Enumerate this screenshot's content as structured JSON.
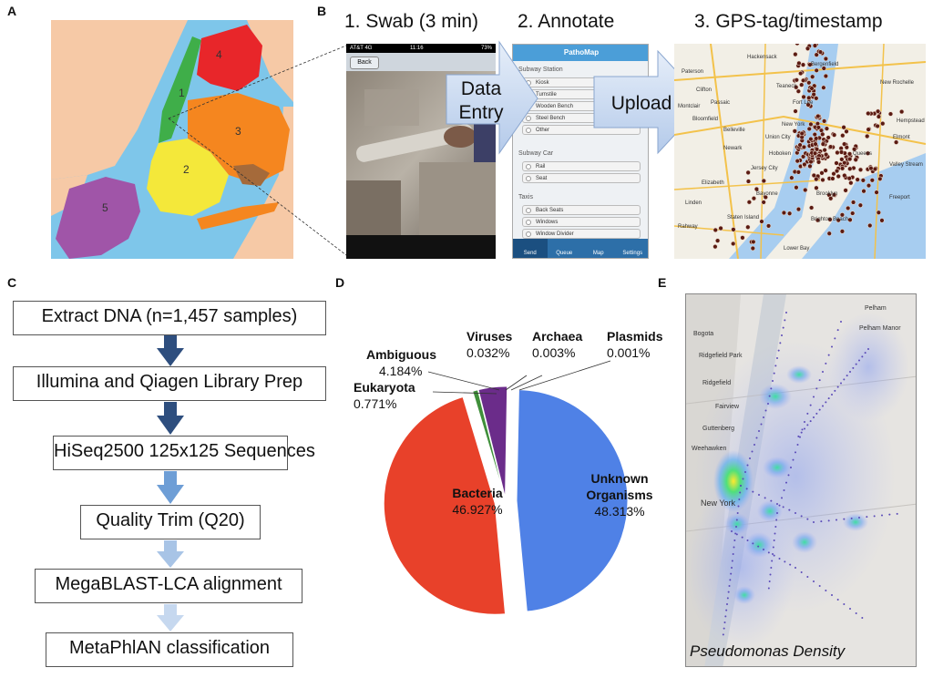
{
  "panels": {
    "a": "A",
    "b": "B",
    "c": "C",
    "d": "D",
    "e": "E"
  },
  "panel_a": {
    "boroughs": [
      "1",
      "2",
      "3",
      "4",
      "5"
    ]
  },
  "panel_b": {
    "steps": [
      "1. Swab (3 min)",
      "2.  Annotate",
      "3. GPS-tag/timestamp"
    ],
    "arrow_data_entry": [
      "Data",
      "Entry"
    ],
    "arrow_upload": "Upload",
    "phone": {
      "status_carrier": "AT&T 4G",
      "status_time": "11:16",
      "status_battery": "73%",
      "back_button": "Back"
    },
    "form": {
      "app_title": "PathoMap",
      "sections": [
        {
          "heading": "Subway Station",
          "options": [
            "Kiosk",
            "Turnstile",
            "Wooden Bench",
            "Steel Bench",
            "Other"
          ]
        },
        {
          "heading": "Subway Car",
          "options": [
            "Rail",
            "Seat"
          ]
        },
        {
          "heading": "Taxis",
          "options": [
            "Back Seats",
            "Windows",
            "Window Divider"
          ]
        }
      ],
      "tabs": [
        "Send",
        "Queue",
        "Map",
        "Settings"
      ]
    },
    "map_labels": [
      "Hackensack",
      "Paterson",
      "Bergenfield",
      "Clifton",
      "Teaneck",
      "New Rochelle",
      "Passaic",
      "Fort Lee",
      "Bloomfield",
      "Belleville",
      "Montclair",
      "Newark",
      "Union City",
      "Hoboken",
      "Jersey City",
      "Elizabeth",
      "Bayonne",
      "Linden",
      "Staten Island",
      "Rahway",
      "New York",
      "Queens",
      "Brooklyn",
      "Brighton Beach",
      "Freeport",
      "Lower Bay",
      "Valley Stream",
      "Elmont",
      "Hempstead"
    ]
  },
  "panel_c": {
    "steps": [
      "Extract DNA (n=1,457 samples)",
      "Illumina and Qiagen Library Prep",
      "HiSeq2500 125x125 Sequences",
      "Quality Trim (Q20)",
      "MegaBLAST-LCA alignment",
      "MetaPhlAN classification"
    ],
    "arrow_colors": [
      "#2e4e7e",
      "#2e4e7e",
      "#6e9ed6",
      "#a8c4e6",
      "#c6d8ef"
    ]
  },
  "chart_data": {
    "type": "pie",
    "categories": [
      "Unknown Organisms",
      "Bacteria",
      "Eukaryota",
      "Ambiguous",
      "Viruses",
      "Archaea",
      "Plasmids"
    ],
    "values": [
      48.313,
      46.927,
      0.771,
      4.184,
      0.032,
      0.003,
      0.001
    ],
    "value_labels": [
      "48.313%",
      "46.927%",
      "0.771%",
      "4.184%",
      "0.032%",
      "0.003%",
      "0.001%"
    ],
    "colors": [
      "#4f81e6",
      "#e8412a",
      "#3f8f3a",
      "#6b2c8a",
      "#8ab0d8",
      "#a6c3e8",
      "#cfdcef"
    ],
    "title": ""
  },
  "panel_e": {
    "caption": "Pseudomonas Density",
    "place_labels": [
      "Pelham",
      "Pelham Manor",
      "Bogota",
      "Ridgefield Park",
      "Ridgefield",
      "Fairview",
      "Guttenberg",
      "Weehawken",
      "New York"
    ]
  }
}
